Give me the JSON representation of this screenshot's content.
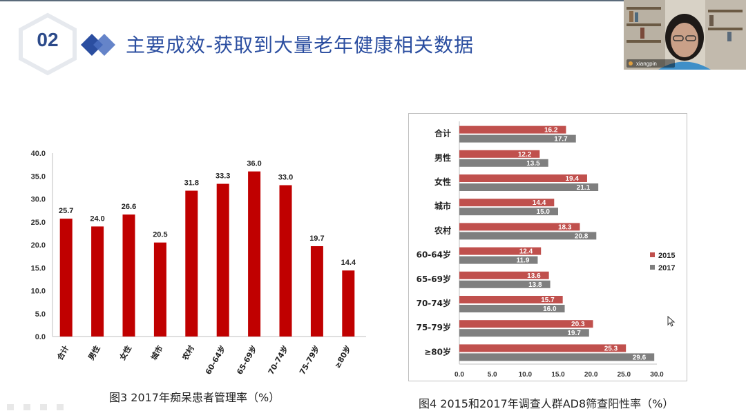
{
  "slide": {
    "section_number": "02",
    "title": "主要成效-获取到大量老年健康相关数据"
  },
  "webcam": {
    "participant_name": "xiangpin"
  },
  "colors": {
    "red": "#c00000",
    "gray": "#7f7f7f",
    "title_blue": "#2b4ea0"
  },
  "chart_data": [
    {
      "type": "bar",
      "caption": "图3 2017年痴呆患者管理率（%）",
      "categories": [
        "合计",
        "男性",
        "女性",
        "城市",
        "农村",
        "60-64岁",
        "65-69岁",
        "70-74岁",
        "75-79岁",
        "≥80岁"
      ],
      "values": [
        25.7,
        24.0,
        26.6,
        20.5,
        31.8,
        33.3,
        36.0,
        33.0,
        19.7,
        14.4
      ],
      "value_labels": [
        "25.7",
        "24.0",
        "26.6",
        "20.5",
        "31.8",
        "33.3",
        "36.0",
        "33.0",
        "19.7",
        "14.4"
      ],
      "yticks": [
        "0.0",
        "5.0",
        "10.0",
        "15.0",
        "20.0",
        "25.0",
        "30.0",
        "35.0",
        "40.0"
      ],
      "ylim": [
        0,
        40
      ],
      "grid": false,
      "color": "#c00000"
    },
    {
      "type": "bar",
      "orientation": "horizontal",
      "caption": "图4 2015和2017年调查人群AD8筛查阳性率（%）",
      "categories": [
        "合计",
        "男性",
        "女性",
        "城市",
        "农村",
        "60-64岁",
        "65-69岁",
        "70-74岁",
        "75-79岁",
        "≥80岁"
      ],
      "series": [
        {
          "name": "2015",
          "values": [
            16.2,
            12.2,
            19.4,
            14.4,
            18.3,
            12.4,
            13.6,
            15.7,
            20.3,
            25.3
          ],
          "labels": [
            "16.2",
            "12.2",
            "19.4",
            "14.4",
            "18.3",
            "12.4",
            "13.6",
            "15.7",
            "20.3",
            "25.3"
          ],
          "color": "#c0504d"
        },
        {
          "name": "2017",
          "values": [
            17.7,
            13.5,
            21.1,
            15.0,
            20.8,
            11.9,
            13.8,
            16.0,
            19.7,
            29.6
          ],
          "labels": [
            "17.7",
            "13.5",
            "21.1",
            "15.0",
            "20.8",
            "11.9",
            "13.8",
            "16.0",
            "19.7",
            "29.6"
          ],
          "color": "#7f7f7f"
        }
      ],
      "xticks": [
        "0.0",
        "5.0",
        "10.0",
        "15.0",
        "20.0",
        "25.0",
        "30.0"
      ],
      "xlim": [
        0,
        30
      ],
      "grid": false,
      "legend": "right"
    }
  ]
}
